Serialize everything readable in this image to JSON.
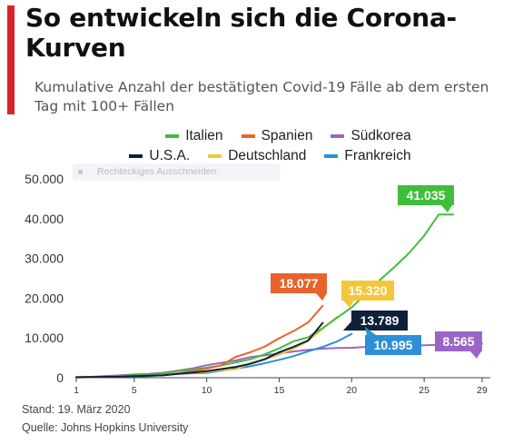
{
  "header": {
    "title": "So entwickeln sich die Corona-Kurven",
    "subtitle": "Kumulative Anzahl der bestätigten Covid-19 Fälle ab dem ersten Tag mit 100+ Fällen",
    "accent_color": "#d7262b"
  },
  "ghost_tooltip": "Rechteckiges Ausschneiden",
  "footer": {
    "date": "Stand: 19. März 2020",
    "source": "Quelle: Johns Hopkins University"
  },
  "chart_data": {
    "type": "line",
    "title": "So entwickeln sich die Corona-Kurven",
    "subtitle": "Kumulative Anzahl der bestätigten Covid-19 Fälle ab dem ersten Tag mit 100+ Fällen",
    "xlabel": "",
    "ylabel": "",
    "xlim": [
      1,
      29
    ],
    "ylim": [
      0,
      50000
    ],
    "xticks": [
      1,
      5,
      10,
      15,
      20,
      25,
      29
    ],
    "yticks": [
      0,
      10000,
      20000,
      30000,
      40000,
      50000
    ],
    "ytick_labels": [
      "0",
      "10.000",
      "20.000",
      "30.000",
      "40.000",
      "50.000"
    ],
    "grid": false,
    "legend_position": "top",
    "series": [
      {
        "name": "Italien",
        "color": "#3fbe3c",
        "end_label": "41.035",
        "x": [
          1,
          2,
          3,
          4,
          5,
          6,
          7,
          8,
          9,
          10,
          11,
          12,
          13,
          14,
          15,
          16,
          17,
          18,
          19,
          20,
          21,
          22,
          23,
          24,
          25,
          26,
          27
        ],
        "y": [
          150,
          229,
          322,
          453,
          655,
          888,
          1128,
          1694,
          2036,
          2502,
          3089,
          3858,
          4636,
          5883,
          7375,
          9172,
          10149,
          12462,
          15113,
          17660,
          21157,
          24747,
          27980,
          31506,
          35713,
          41035,
          41035
        ]
      },
      {
        "name": "Spanien",
        "color": "#e8632b",
        "end_label": "18.077",
        "x": [
          1,
          2,
          3,
          4,
          5,
          6,
          7,
          8,
          9,
          10,
          11,
          12,
          13,
          14,
          15,
          16,
          17,
          18
        ],
        "y": [
          120,
          165,
          222,
          259,
          400,
          500,
          673,
          1073,
          1695,
          2277,
          3146,
          5232,
          6391,
          7798,
          9942,
          11748,
          13910,
          18077
        ]
      },
      {
        "name": "Südkorea",
        "color": "#9a65c7",
        "end_label": "8.565",
        "x": [
          1,
          2,
          3,
          4,
          5,
          6,
          7,
          8,
          9,
          10,
          11,
          12,
          13,
          14,
          15,
          16,
          17,
          18,
          19,
          20,
          21,
          22,
          23,
          24,
          25,
          26,
          27,
          28,
          29
        ],
        "y": [
          104,
          204,
          433,
          602,
          833,
          977,
          1261,
          1766,
          2337,
          3150,
          3736,
          4335,
          5186,
          5621,
          6088,
          6593,
          7041,
          7314,
          7478,
          7513,
          7755,
          7869,
          7979,
          8086,
          8162,
          8236,
          8320,
          8413,
          8565
        ]
      },
      {
        "name": "U.S.A.",
        "color": "#0f2039",
        "end_label": "13.789",
        "x": [
          1,
          2,
          3,
          4,
          5,
          6,
          7,
          8,
          9,
          10,
          11,
          12,
          13,
          14,
          15,
          16,
          17,
          18
        ],
        "y": [
          118,
          149,
          217,
          262,
          402,
          518,
          583,
          959,
          1281,
          1663,
          2179,
          2727,
          3499,
          4632,
          6421,
          7786,
          9367,
          13789
        ]
      },
      {
        "name": "Deutschland",
        "color": "#f4c63b",
        "end_label": "15.320",
        "x": [
          1,
          2,
          3,
          4,
          5,
          6,
          7,
          8,
          9,
          10,
          11,
          12,
          13,
          14,
          15,
          16,
          17,
          18,
          19
        ],
        "y": [
          130,
          159,
          196,
          262,
          482,
          670,
          799,
          1040,
          1176,
          1457,
          1908,
          2078,
          3675,
          4585,
          5795,
          7272,
          9257,
          12327,
          15320
        ]
      },
      {
        "name": "Frankreich",
        "color": "#2d8fd8",
        "end_label": "10.995",
        "x": [
          1,
          2,
          3,
          4,
          5,
          6,
          7,
          8,
          9,
          10,
          11,
          12,
          13,
          14,
          15,
          16,
          17,
          18,
          19,
          20
        ],
        "y": [
          100,
          130,
          191,
          204,
          285,
          377,
          653,
          949,
          1126,
          1209,
          1784,
          2281,
          2876,
          3661,
          4499,
          5423,
          6633,
          7730,
          9134,
          10995
        ]
      }
    ]
  }
}
